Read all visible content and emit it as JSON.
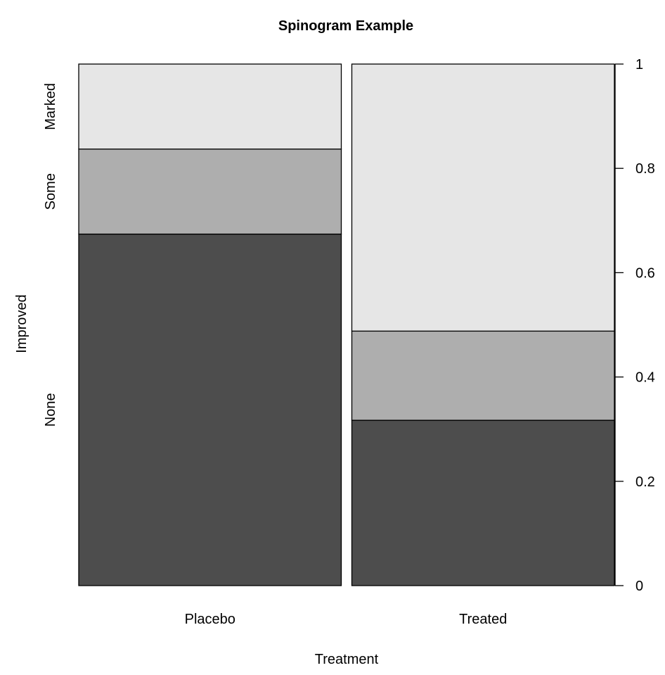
{
  "chart_data": {
    "type": "spinogram",
    "title": "Spinogram Example",
    "xlabel": "Treatment",
    "ylabel": "Improved",
    "categories": [
      "Placebo",
      "Treated"
    ],
    "category_widths": [
      0.5,
      0.5
    ],
    "levels": [
      "None",
      "Some",
      "Marked"
    ],
    "level_colors": [
      "#4d4d4d",
      "#aeaeae",
      "#e6e6e6"
    ],
    "series": [
      {
        "name": "None",
        "values": [
          0.674,
          0.317
        ]
      },
      {
        "name": "Some",
        "values": [
          0.163,
          0.171
        ]
      },
      {
        "name": "Marked",
        "values": [
          0.163,
          0.512
        ]
      }
    ],
    "left_axis_labels": [
      "None",
      "Some",
      "Marked"
    ],
    "right_axis_ticks": [
      0,
      0.2,
      0.4,
      0.6,
      0.8,
      1
    ],
    "right_axis_tick_labels": [
      "0",
      "0.2",
      "0.4",
      "0.6",
      "0.8",
      "1"
    ],
    "ylim": [
      0,
      1
    ],
    "grid": false
  }
}
